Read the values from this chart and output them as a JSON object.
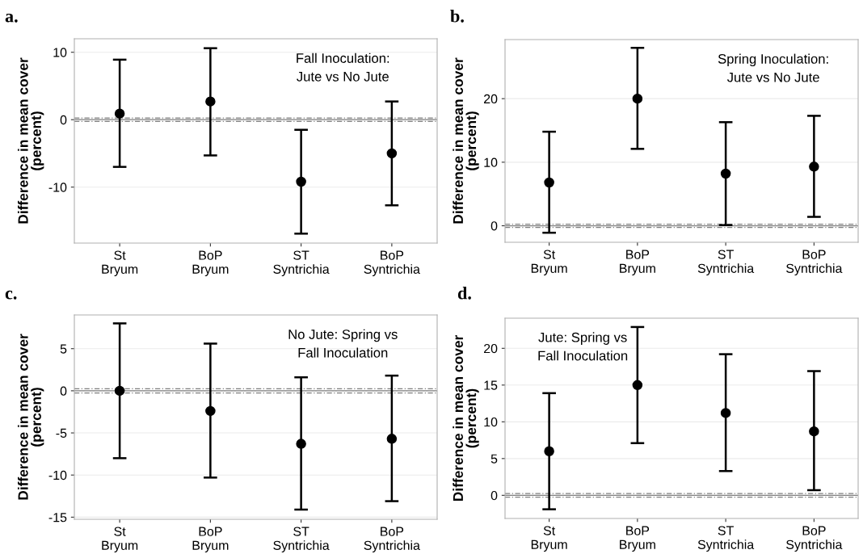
{
  "chart_data": [
    {
      "type": "scatter",
      "title": "a.",
      "ylabel": "Difference in mean cover\n(percent)",
      "categories": [
        "St\nBryum",
        "BoP\nBryum",
        "ST\nSyntrichia",
        "BoP\nSyntrichia"
      ],
      "values": [
        0.9,
        2.7,
        -9.2,
        -5.0
      ],
      "errors": [
        [
          -7.0,
          8.9
        ],
        [
          -5.3,
          10.6
        ],
        [
          -16.9,
          -1.5
        ],
        [
          -12.7,
          2.7
        ]
      ],
      "color": "#000000",
      "marker": "circle",
      "ylim": [
        -18.3,
        12.0
      ],
      "yticks": [
        -10,
        0,
        10
      ],
      "grid": "y",
      "annotations": [
        "Fall Inoculation:\nJute vs No Jute"
      ],
      "ref_lines": [
        {
          "axis": "y",
          "value": 0,
          "color": "#808080",
          "line_style": "solid"
        },
        {
          "axis": "y",
          "value": 0.25,
          "color": "#808080",
          "line_style": "dashed"
        },
        {
          "axis": "y",
          "value": -0.25,
          "color": "#808080",
          "line_style": "dashed"
        }
      ]
    },
    {
      "type": "scatter",
      "title": "b.",
      "ylabel": "Difference in mean cover\n(percent)",
      "categories": [
        "St\nBryum",
        "BoP\nBryum",
        "ST\nSyntrichia",
        "BoP\nSyntrichia"
      ],
      "values": [
        6.8,
        20.0,
        8.2,
        9.3
      ],
      "errors": [
        [
          -1.1,
          14.8
        ],
        [
          12.1,
          28.0
        ],
        [
          0.1,
          16.3
        ],
        [
          1.4,
          17.3
        ]
      ],
      "color": "#000000",
      "marker": "circle",
      "ylim": [
        -2.6,
        29.3
      ],
      "yticks": [
        0,
        10,
        20
      ],
      "grid": "y",
      "annotations": [
        "Spring Inoculation:\nJute vs No Jute"
      ],
      "ref_lines": [
        {
          "axis": "y",
          "value": 0,
          "color": "#808080",
          "line_style": "solid"
        },
        {
          "axis": "y",
          "value": 0.25,
          "color": "#808080",
          "line_style": "dashed"
        },
        {
          "axis": "y",
          "value": -0.25,
          "color": "#808080",
          "line_style": "dashed"
        }
      ]
    },
    {
      "type": "scatter",
      "title": "c.",
      "ylabel": "Difference in mean cover\n(percent)",
      "categories": [
        "St\nBryum",
        "BoP\nBryum",
        "ST\nSyntrichia",
        "BoP\nSyntrichia"
      ],
      "values": [
        0.0,
        -2.4,
        -6.3,
        -5.7
      ],
      "errors": [
        [
          -8.0,
          8.0
        ],
        [
          -10.3,
          5.6
        ],
        [
          -14.1,
          1.6
        ],
        [
          -13.1,
          1.8
        ]
      ],
      "color": "#000000",
      "marker": "circle",
      "ylim": [
        -15.25,
        9.0
      ],
      "yticks": [
        -15,
        -10,
        -5,
        0,
        5
      ],
      "grid": "y",
      "annotations": [
        "No Jute: Spring vs\nFall Inoculation"
      ],
      "ref_lines": [
        {
          "axis": "y",
          "value": 0,
          "color": "#808080",
          "line_style": "solid"
        },
        {
          "axis": "y",
          "value": 0.25,
          "color": "#808080",
          "line_style": "dashed"
        },
        {
          "axis": "y",
          "value": -0.25,
          "color": "#808080",
          "line_style": "dashed"
        }
      ]
    },
    {
      "type": "scatter",
      "title": "d.",
      "ylabel": "Difference in mean cover\n(percent)",
      "categories": [
        "St\nBryum",
        "BoP\nBryum",
        "ST\nSyntrichia",
        "BoP\nSyntrichia"
      ],
      "values": [
        6.0,
        15.0,
        11.2,
        8.7
      ],
      "errors": [
        [
          -1.9,
          13.9
        ],
        [
          7.1,
          22.9
        ],
        [
          3.3,
          19.2
        ],
        [
          0.7,
          16.9
        ]
      ],
      "color": "#000000",
      "marker": "circle",
      "ylim": [
        -3.15,
        24.1
      ],
      "yticks": [
        0,
        5,
        10,
        15,
        20
      ],
      "grid": "y",
      "annotations": [
        "Jute: Spring vs\nFall Inoculation"
      ],
      "ref_lines": [
        {
          "axis": "y",
          "value": 0,
          "color": "#808080",
          "line_style": "solid"
        },
        {
          "axis": "y",
          "value": 0.25,
          "color": "#808080",
          "line_style": "dashed"
        },
        {
          "axis": "y",
          "value": -0.25,
          "color": "#808080",
          "line_style": "dashed"
        }
      ]
    }
  ]
}
